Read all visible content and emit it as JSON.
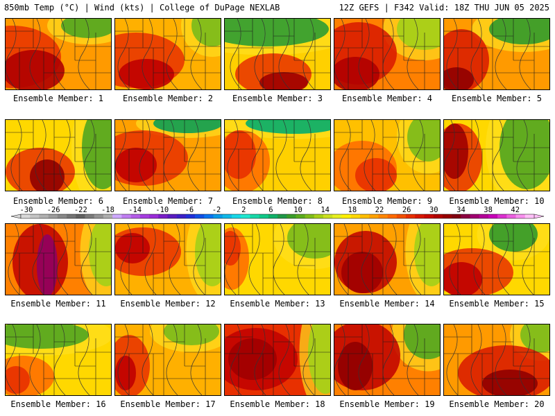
{
  "header": {
    "left": "850mb Temp (°C) | Wind (kts) | College of DuPage NEXLAB",
    "right": "12Z GEFS | F342 Valid: 18Z THU JUN 05 2025"
  },
  "panels": [
    {
      "label": "Ensemble Member: 1"
    },
    {
      "label": "Ensemble Member: 2"
    },
    {
      "label": "Ensemble Member: 3"
    },
    {
      "label": "Ensemble Member: 4"
    },
    {
      "label": "Ensemble Member: 5"
    },
    {
      "label": "Ensemble Member: 6"
    },
    {
      "label": "Ensemble Member: 7"
    },
    {
      "label": "Ensemble Member: 8"
    },
    {
      "label": "Ensemble Member: 9"
    },
    {
      "label": "Ensemble Member: 10"
    },
    {
      "label": "Ensemble Member: 11"
    },
    {
      "label": "Ensemble Member: 12"
    },
    {
      "label": "Ensemble Member: 13"
    },
    {
      "label": "Ensemble Member: 14"
    },
    {
      "label": "Ensemble Member: 15"
    },
    {
      "label": "Ensemble Member: 16"
    },
    {
      "label": "Ensemble Member: 17"
    },
    {
      "label": "Ensemble Member: 18"
    },
    {
      "label": "Ensemble Member: 19"
    },
    {
      "label": "Ensemble Member: 20"
    }
  ],
  "colorbar": {
    "ticks": [
      "-30",
      "-26",
      "-22",
      "-18",
      "-14",
      "-10",
      "-6",
      "-2",
      "2",
      "6",
      "10",
      "14",
      "18",
      "22",
      "26",
      "30",
      "34",
      "38",
      "42"
    ],
    "colors": [
      "#d8d8d8",
      "#c4c4c4",
      "#b0b0b0",
      "#9c9c9c",
      "#888888",
      "#747474",
      "#606060",
      "#7a7a7a",
      "#949494",
      "#aeaeae",
      "#cfa9ff",
      "#c07ef2",
      "#b45ce8",
      "#a63de0",
      "#9a2cd8",
      "#7a1ec8",
      "#5a1cc0",
      "#3c20c8",
      "#2030d8",
      "#1050e6",
      "#0a74f0",
      "#0a9ae8",
      "#10b8e8",
      "#18d8e8",
      "#20e8d0",
      "#18d8a8",
      "#10c888",
      "#10b068",
      "#209848",
      "#3a9c2a",
      "#5aaa1e",
      "#80bc1a",
      "#a8d018",
      "#cce020",
      "#e8f020",
      "#fff000",
      "#ffd800",
      "#ffbe00",
      "#ffa200",
      "#ff8600",
      "#ff6a00",
      "#f24e00",
      "#e83000",
      "#d81800",
      "#c80a00",
      "#b00000",
      "#960000",
      "#800010",
      "#8c0040",
      "#a00070",
      "#b40098",
      "#c800b8",
      "#dc30d0",
      "#ec60e0",
      "#f890ee",
      "#ffc0f8"
    ]
  }
}
